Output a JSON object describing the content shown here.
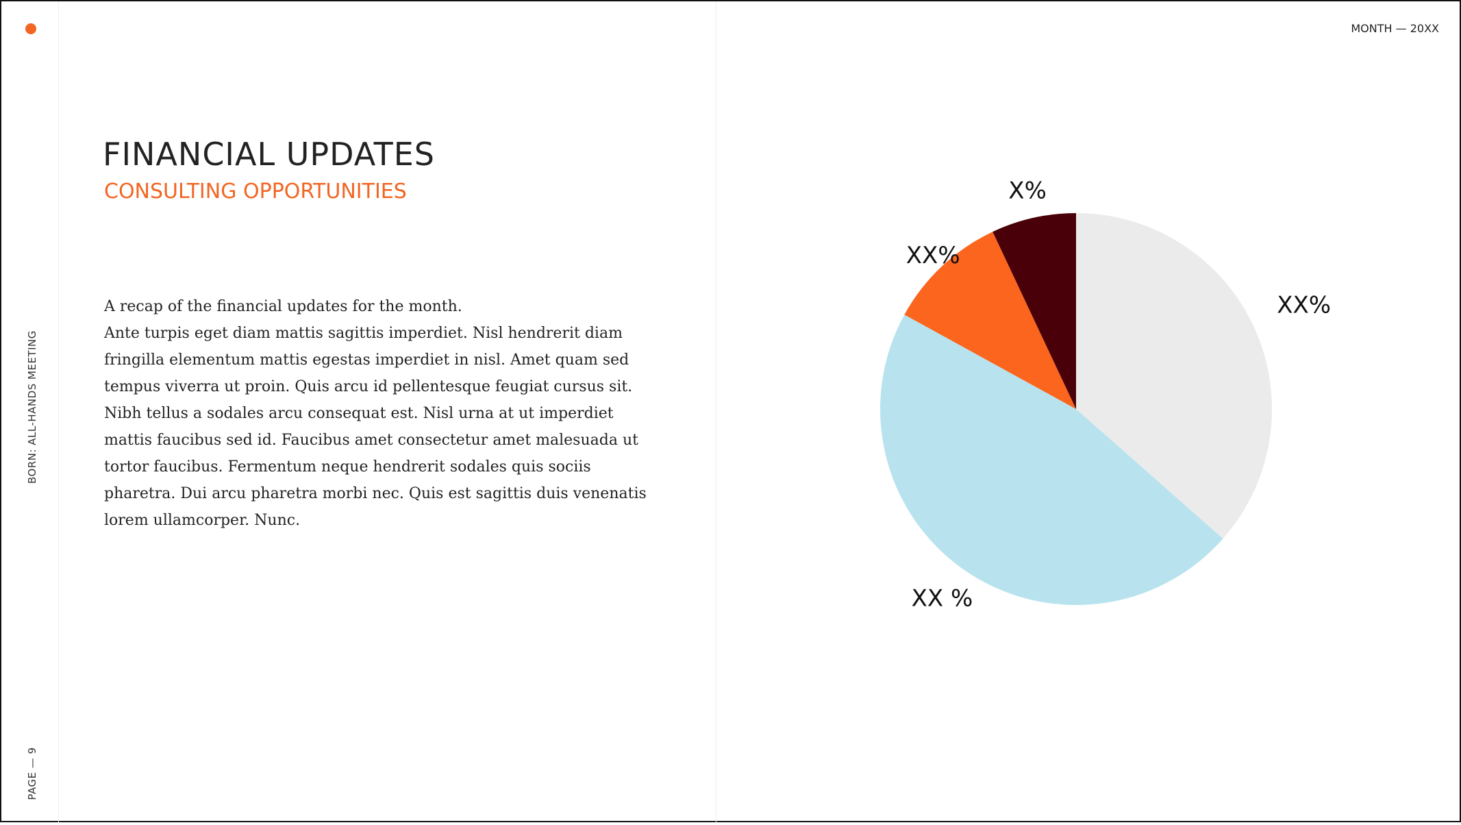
{
  "header": {
    "date_label": "MONTH — 20XX"
  },
  "sidebar": {
    "meeting_label": "BORN: ALL-HANDS MEETING",
    "page_label": "PAGE — 9"
  },
  "content": {
    "title": "FINANCIAL UPDATES",
    "subtitle": "CONSULTING OPPORTUNITIES",
    "intro": "A recap of the financial updates for the month.",
    "paragraph": "Ante turpis eget diam mattis sagittis imperdiet. Nisl hendrerit diam fringilla elementum mattis egestas imperdiet in nisl. Amet quam sed tempus viverra ut proin. Quis arcu id pellentesque feugiat cursus sit. Nibh tellus a sodales arcu consequat est. Nisl urna at ut imperdiet mattis faucibus sed id. Faucibus amet consectetur amet malesuada ut tortor faucibus. Fermentum neque hendrerit sodales quis sociis pharetra. Dui arcu pharetra morbi nec. Quis est sagittis duis venenatis lorem ullamcorper. Nunc."
  },
  "colors": {
    "accent": "#f26522"
  },
  "chart_data": {
    "type": "pie",
    "title": "",
    "slices": [
      {
        "label": "XX%",
        "value": 36.5,
        "color": "#ebebeb"
      },
      {
        "label": "XX %",
        "value": 46.5,
        "color": "#b8e3ee"
      },
      {
        "label": "XX%",
        "value": 10,
        "color": "#fb651e"
      },
      {
        "label": "X%",
        "value": 7,
        "color": "#4a0008"
      }
    ],
    "start_angle": "12 o'clock",
    "direction": "clockwise"
  }
}
